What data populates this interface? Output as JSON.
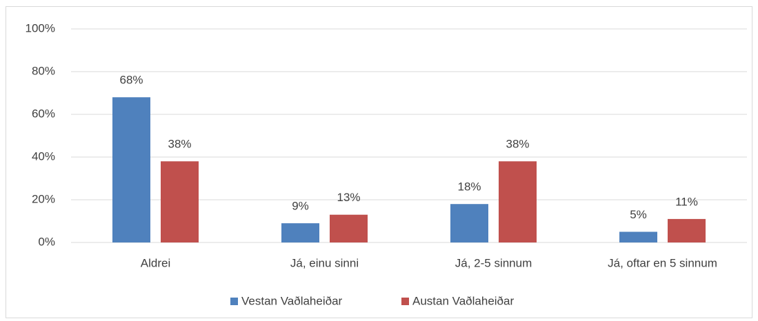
{
  "chart_data": {
    "type": "bar",
    "categories": [
      "Aldrei",
      "Já, einu sinni",
      "Já, 2-5 sinnum",
      "Já, oftar en 5 sinnum"
    ],
    "series": [
      {
        "name": "Vestan Vaðlaheiðar",
        "color": "#4f81bd",
        "values": [
          68,
          9,
          18,
          5
        ],
        "value_labels": [
          "68%",
          "9%",
          "18%",
          "5%"
        ]
      },
      {
        "name": "Austan Vaðlaheiðar",
        "color": "#c0504d",
        "values": [
          38,
          13,
          38,
          11
        ],
        "value_labels": [
          "38%",
          "13%",
          "38%",
          "11%"
        ]
      }
    ],
    "ylim": [
      0,
      100
    ],
    "yticks": [
      {
        "value": 0,
        "label": "0%"
      },
      {
        "value": 20,
        "label": "20%"
      },
      {
        "value": 40,
        "label": "40%"
      },
      {
        "value": 60,
        "label": "60%"
      },
      {
        "value": 80,
        "label": "80%"
      },
      {
        "value": 100,
        "label": "100%"
      }
    ],
    "grid": true,
    "legend": "bottom"
  }
}
